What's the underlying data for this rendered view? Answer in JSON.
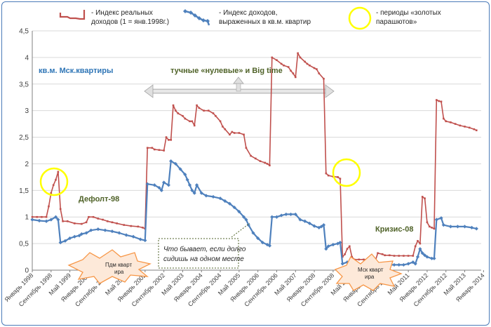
{
  "chart_data": {
    "type": "line",
    "ylim": [
      0,
      4.5
    ],
    "y_ticks": [
      "0",
      "0,5",
      "1",
      "1,5",
      "2",
      "2,5",
      "3",
      "3,5",
      "4",
      "4,5"
    ],
    "x_tick_labels": [
      "Январь 1998",
      "Сентябрь 1998",
      "Май 1999",
      "Январь 2000",
      "Сентябрь 2000",
      "Май 2001",
      "Январь 2002",
      "Сентябрь 2002",
      "Май 2003",
      "Январь 2004",
      "Сентябрь 2004",
      "Май 2005",
      "Январь 2006",
      "Сентябрь 2006",
      "Май 2007",
      "Январь 2008",
      "Сентябрь 2008",
      "Май 2009",
      "Январь 2010",
      "Сентябрь 2010",
      "Май 2011",
      "Январь 2012",
      "Сентябрь 2012",
      "Май 2013",
      "Январь 2014"
    ],
    "series": [
      {
        "name": "- Индекс реальных доходов (1 = янв.1998г.)",
        "color": "#c0504d",
        "points": [
          [
            0,
            1.0
          ],
          [
            2,
            1.0
          ],
          [
            4,
            1.0
          ],
          [
            6,
            1.0
          ],
          [
            7,
            1.2
          ],
          [
            8,
            1.45
          ],
          [
            9,
            1.6
          ],
          [
            10,
            1.7
          ],
          [
            11,
            1.85
          ],
          [
            12,
            1.15
          ],
          [
            13,
            0.92
          ],
          [
            15,
            0.92
          ],
          [
            18,
            0.88
          ],
          [
            21,
            0.87
          ],
          [
            23,
            0.9
          ],
          [
            24,
            1.0
          ],
          [
            26,
            1.0
          ],
          [
            28,
            0.97
          ],
          [
            30,
            0.95
          ],
          [
            32,
            0.92
          ],
          [
            34,
            0.9
          ],
          [
            36,
            0.88
          ],
          [
            39,
            0.85
          ],
          [
            42,
            0.83
          ],
          [
            45,
            0.82
          ],
          [
            47,
            0.8
          ],
          [
            48,
            0.78
          ],
          [
            49,
            2.3
          ],
          [
            51,
            2.3
          ],
          [
            52,
            2.27
          ],
          [
            54,
            2.26
          ],
          [
            56,
            2.25
          ],
          [
            57,
            2.5
          ],
          [
            58,
            2.45
          ],
          [
            59,
            2.45
          ],
          [
            60,
            3.1
          ],
          [
            61,
            3.0
          ],
          [
            62,
            2.95
          ],
          [
            64,
            2.9
          ],
          [
            65,
            2.85
          ],
          [
            67,
            2.8
          ],
          [
            68,
            2.8
          ],
          [
            69,
            2.72
          ],
          [
            70,
            3.1
          ],
          [
            71,
            3.05
          ],
          [
            73,
            3.0
          ],
          [
            75,
            3.0
          ],
          [
            77,
            2.95
          ],
          [
            78,
            2.9
          ],
          [
            80,
            2.8
          ],
          [
            81,
            2.7
          ],
          [
            82,
            2.65
          ],
          [
            84,
            2.55
          ],
          [
            85,
            2.6
          ],
          [
            86,
            2.58
          ],
          [
            88,
            2.58
          ],
          [
            90,
            2.55
          ],
          [
            91,
            2.3
          ],
          [
            93,
            2.15
          ],
          [
            95,
            2.1
          ],
          [
            97,
            2.05
          ],
          [
            99,
            2.02
          ],
          [
            100,
            2.0
          ],
          [
            101,
            1.97
          ],
          [
            102,
            4.0
          ],
          [
            104,
            3.95
          ],
          [
            106,
            3.88
          ],
          [
            107,
            3.85
          ],
          [
            109,
            3.82
          ],
          [
            110,
            3.75
          ],
          [
            111,
            3.7
          ],
          [
            112,
            3.63
          ],
          [
            113,
            4.08
          ],
          [
            114,
            4.0
          ],
          [
            116,
            3.92
          ],
          [
            117,
            3.88
          ],
          [
            118,
            3.85
          ],
          [
            120,
            3.8
          ],
          [
            121,
            3.78
          ],
          [
            122,
            3.7
          ],
          [
            124,
            3.6
          ],
          [
            125,
            1.82
          ],
          [
            126,
            1.78
          ],
          [
            128,
            1.76
          ],
          [
            130,
            1.75
          ],
          [
            131,
            1.72
          ],
          [
            132,
            0.25
          ],
          [
            133,
            0.3
          ],
          [
            134,
            0.4
          ],
          [
            135,
            0.45
          ],
          [
            136,
            0.25
          ],
          [
            137,
            0.2
          ],
          [
            139,
            0.2
          ],
          [
            141,
            0.2
          ],
          [
            143,
            0.2
          ],
          [
            145,
            0.2
          ],
          [
            146,
            0.18
          ],
          [
            147,
            0.32
          ],
          [
            149,
            0.3
          ],
          [
            150,
            0.28
          ],
          [
            152,
            0.28
          ],
          [
            154,
            0.27
          ],
          [
            156,
            0.27
          ],
          [
            158,
            0.27
          ],
          [
            160,
            0.27
          ],
          [
            162,
            0.27
          ],
          [
            163,
            0.45
          ],
          [
            164,
            0.55
          ],
          [
            165,
            0.5
          ],
          [
            166,
            1.38
          ],
          [
            167,
            1.35
          ],
          [
            168,
            0.9
          ],
          [
            169,
            0.82
          ],
          [
            170,
            0.8
          ],
          [
            171,
            0.78
          ],
          [
            172,
            3.2
          ],
          [
            173,
            3.18
          ],
          [
            174,
            3.17
          ],
          [
            175,
            2.85
          ],
          [
            176,
            2.8
          ],
          [
            178,
            2.78
          ],
          [
            180,
            2.75
          ],
          [
            182,
            2.72
          ],
          [
            184,
            2.7
          ],
          [
            186,
            2.68
          ],
          [
            188,
            2.65
          ],
          [
            189,
            2.63
          ]
        ]
      },
      {
        "name": "- Индекс доходов, выраженных в кв.м. квартир",
        "color": "#4f81bd",
        "points": [
          [
            0,
            0.95
          ],
          [
            3,
            0.93
          ],
          [
            6,
            0.92
          ],
          [
            8,
            0.95
          ],
          [
            10,
            1.0
          ],
          [
            11,
            0.95
          ],
          [
            12,
            0.52
          ],
          [
            14,
            0.55
          ],
          [
            16,
            0.6
          ],
          [
            18,
            0.63
          ],
          [
            20,
            0.65
          ],
          [
            21,
            0.68
          ],
          [
            23,
            0.7
          ],
          [
            25,
            0.75
          ],
          [
            28,
            0.77
          ],
          [
            31,
            0.75
          ],
          [
            34,
            0.73
          ],
          [
            37,
            0.7
          ],
          [
            40,
            0.66
          ],
          [
            43,
            0.63
          ],
          [
            46,
            0.58
          ],
          [
            48,
            0.56
          ],
          [
            49,
            1.62
          ],
          [
            52,
            1.6
          ],
          [
            54,
            1.55
          ],
          [
            55,
            1.5
          ],
          [
            56,
            1.65
          ],
          [
            58,
            1.6
          ],
          [
            59,
            2.05
          ],
          [
            61,
            2.0
          ],
          [
            63,
            1.9
          ],
          [
            65,
            1.8
          ],
          [
            66,
            1.7
          ],
          [
            67,
            1.6
          ],
          [
            68,
            1.5
          ],
          [
            69,
            1.45
          ],
          [
            70,
            1.6
          ],
          [
            72,
            1.45
          ],
          [
            74,
            1.4
          ],
          [
            77,
            1.38
          ],
          [
            80,
            1.35
          ],
          [
            82,
            1.3
          ],
          [
            84,
            1.25
          ],
          [
            86,
            1.18
          ],
          [
            88,
            1.1
          ],
          [
            90,
            1.0
          ],
          [
            91,
            0.95
          ],
          [
            92,
            0.85
          ],
          [
            94,
            0.7
          ],
          [
            96,
            0.6
          ],
          [
            98,
            0.52
          ],
          [
            100,
            0.48
          ],
          [
            101,
            0.46
          ],
          [
            102,
            1.0
          ],
          [
            104,
            1.0
          ],
          [
            106,
            1.03
          ],
          [
            108,
            1.05
          ],
          [
            110,
            1.05
          ],
          [
            112,
            1.05
          ],
          [
            114,
            0.95
          ],
          [
            116,
            0.92
          ],
          [
            118,
            0.88
          ],
          [
            120,
            0.83
          ],
          [
            122,
            0.8
          ],
          [
            123,
            0.82
          ],
          [
            124,
            0.85
          ],
          [
            125,
            0.4
          ],
          [
            126,
            0.45
          ],
          [
            128,
            0.48
          ],
          [
            130,
            0.5
          ],
          [
            131,
            0.52
          ],
          [
            132,
            0.12
          ],
          [
            134,
            0.15
          ],
          [
            136,
            0.1
          ],
          [
            138,
            0.1
          ],
          [
            140,
            0.1
          ],
          [
            142,
            0.1
          ],
          [
            144,
            0.08
          ],
          [
            146,
            0.08
          ],
          [
            148,
            0.1
          ],
          [
            150,
            0.1
          ],
          [
            152,
            0.1
          ],
          [
            154,
            0.1
          ],
          [
            156,
            0.1
          ],
          [
            158,
            0.1
          ],
          [
            160,
            0.12
          ],
          [
            162,
            0.15
          ],
          [
            163,
            0.12
          ],
          [
            164,
            0.25
          ],
          [
            165,
            0.4
          ],
          [
            166,
            0.32
          ],
          [
            167,
            0.28
          ],
          [
            168,
            0.25
          ],
          [
            170,
            0.22
          ],
          [
            171,
            0.22
          ],
          [
            172,
            0.95
          ],
          [
            174,
            0.98
          ],
          [
            175,
            0.85
          ],
          [
            178,
            0.82
          ],
          [
            181,
            0.82
          ],
          [
            184,
            0.82
          ],
          [
            187,
            0.8
          ],
          [
            189,
            0.78
          ]
        ]
      }
    ],
    "legend": [
      {
        "label_line1": "- Индекс реальных",
        "label_line2": "доходов (1 = янв.1998г.)"
      },
      {
        "label_line1": "- Индекс доходов,",
        "label_line2": "выраженных в кв.м. квартир"
      },
      {
        "label_line1": "- периоды «золотых",
        "label_line2": "парашютов»"
      }
    ],
    "annotations": {
      "sq_m_label": "кв.м. Мск.квартиры",
      "big_time": "тучные «нулевые» и Big time",
      "default98": "Дефолт-98",
      "crisis08": "Кризис-08",
      "callout_line1": "Что бывает, если долго",
      "callout_line2": "сидишь на одном месте",
      "burst1_line1": "Пдм кварт",
      "burst1_line2": "ира",
      "burst2_line1": "Мск кварт",
      "burst2_line2": "ира"
    },
    "colors": {
      "red": "#c0504d",
      "blue": "#4f81bd",
      "yellow_circle": "#ffff00",
      "burst": "#f79646",
      "sq_m_text": "#2e75b6",
      "olive_text": "#4f6228"
    }
  }
}
